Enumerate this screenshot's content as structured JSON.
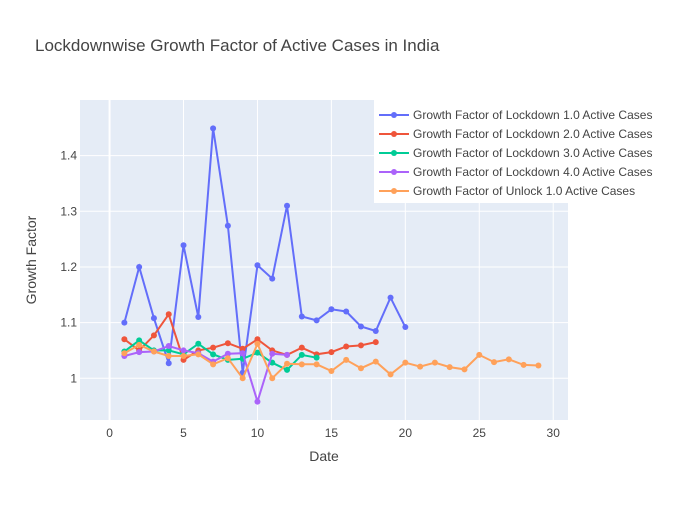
{
  "chart_data": {
    "type": "line",
    "title": "Lockdownwise Growth Factor of Active Cases in India",
    "xlabel": "Date",
    "ylabel": "Growth Factor",
    "xlim": [
      -2,
      31
    ],
    "ylim": [
      0.925,
      1.5
    ],
    "xticks": [
      0,
      5,
      10,
      15,
      20,
      25,
      30
    ],
    "yticks": [
      1,
      1.1,
      1.2,
      1.3,
      1.4
    ],
    "ytick_labels": [
      "1",
      "1.1",
      "1.2",
      "1.3",
      "1.4"
    ],
    "grid": true,
    "legend_position": "top-right",
    "series": [
      {
        "name": "Growth Factor of Lockdown 1.0 Active Cases",
        "color": "#636efa",
        "x": [
          1,
          2,
          3,
          4,
          5,
          6,
          7,
          8,
          9,
          10,
          11,
          12,
          13,
          14,
          15,
          16,
          17,
          18,
          19,
          20
        ],
        "y": [
          1.1,
          1.2,
          1.108,
          1.027,
          1.239,
          1.11,
          1.449,
          1.274,
          1.01,
          1.203,
          1.179,
          1.31,
          1.111,
          1.104,
          1.124,
          1.12,
          1.093,
          1.085,
          1.145,
          1.092
        ]
      },
      {
        "name": "Growth Factor of Lockdown 2.0 Active Cases",
        "color": "#ef553b",
        "x": [
          1,
          2,
          3,
          4,
          5,
          6,
          7,
          8,
          9,
          10,
          11,
          12,
          13,
          14,
          15,
          16,
          17,
          18
        ],
        "y": [
          1.07,
          1.05,
          1.077,
          1.115,
          1.033,
          1.05,
          1.055,
          1.063,
          1.053,
          1.07,
          1.05,
          1.042,
          1.055,
          1.043,
          1.047,
          1.057,
          1.059,
          1.065
        ]
      },
      {
        "name": "Growth Factor of Lockdown 3.0 Active Cases",
        "color": "#00cc96",
        "x": [
          1,
          2,
          3,
          4,
          5,
          6,
          7,
          8,
          9,
          10,
          11,
          12,
          13,
          14
        ],
        "y": [
          1.048,
          1.068,
          1.05,
          1.05,
          1.043,
          1.062,
          1.043,
          1.033,
          1.035,
          1.046,
          1.028,
          1.015,
          1.042,
          1.037
        ]
      },
      {
        "name": "Growth Factor of Lockdown 4.0 Active Cases",
        "color": "#ab63fa",
        "x": [
          1,
          2,
          3,
          4,
          5,
          6,
          7,
          8,
          9,
          10,
          11,
          12
        ],
        "y": [
          1.04,
          1.047,
          1.048,
          1.058,
          1.05,
          1.045,
          1.03,
          1.044,
          1.045,
          0.958,
          1.044,
          1.042
        ]
      },
      {
        "name": "Growth Factor of Unlock 1.0 Active Cases",
        "color": "#ffa15a",
        "x": [
          1,
          2,
          3,
          4,
          5,
          6,
          7,
          8,
          9,
          10,
          11,
          12,
          13,
          14,
          15,
          16,
          17,
          18,
          19,
          20,
          21,
          22,
          23,
          24,
          25,
          26,
          27,
          28,
          29
        ],
        "y": [
          1.045,
          1.06,
          1.048,
          1.04,
          1.04,
          1.043,
          1.025,
          1.036,
          1.0,
          1.062,
          1.0,
          1.026,
          1.025,
          1.025,
          1.013,
          1.033,
          1.018,
          1.03,
          1.007,
          1.028,
          1.021,
          1.028,
          1.02,
          1.016,
          1.042,
          1.029,
          1.034,
          1.024,
          1.023
        ]
      }
    ]
  }
}
